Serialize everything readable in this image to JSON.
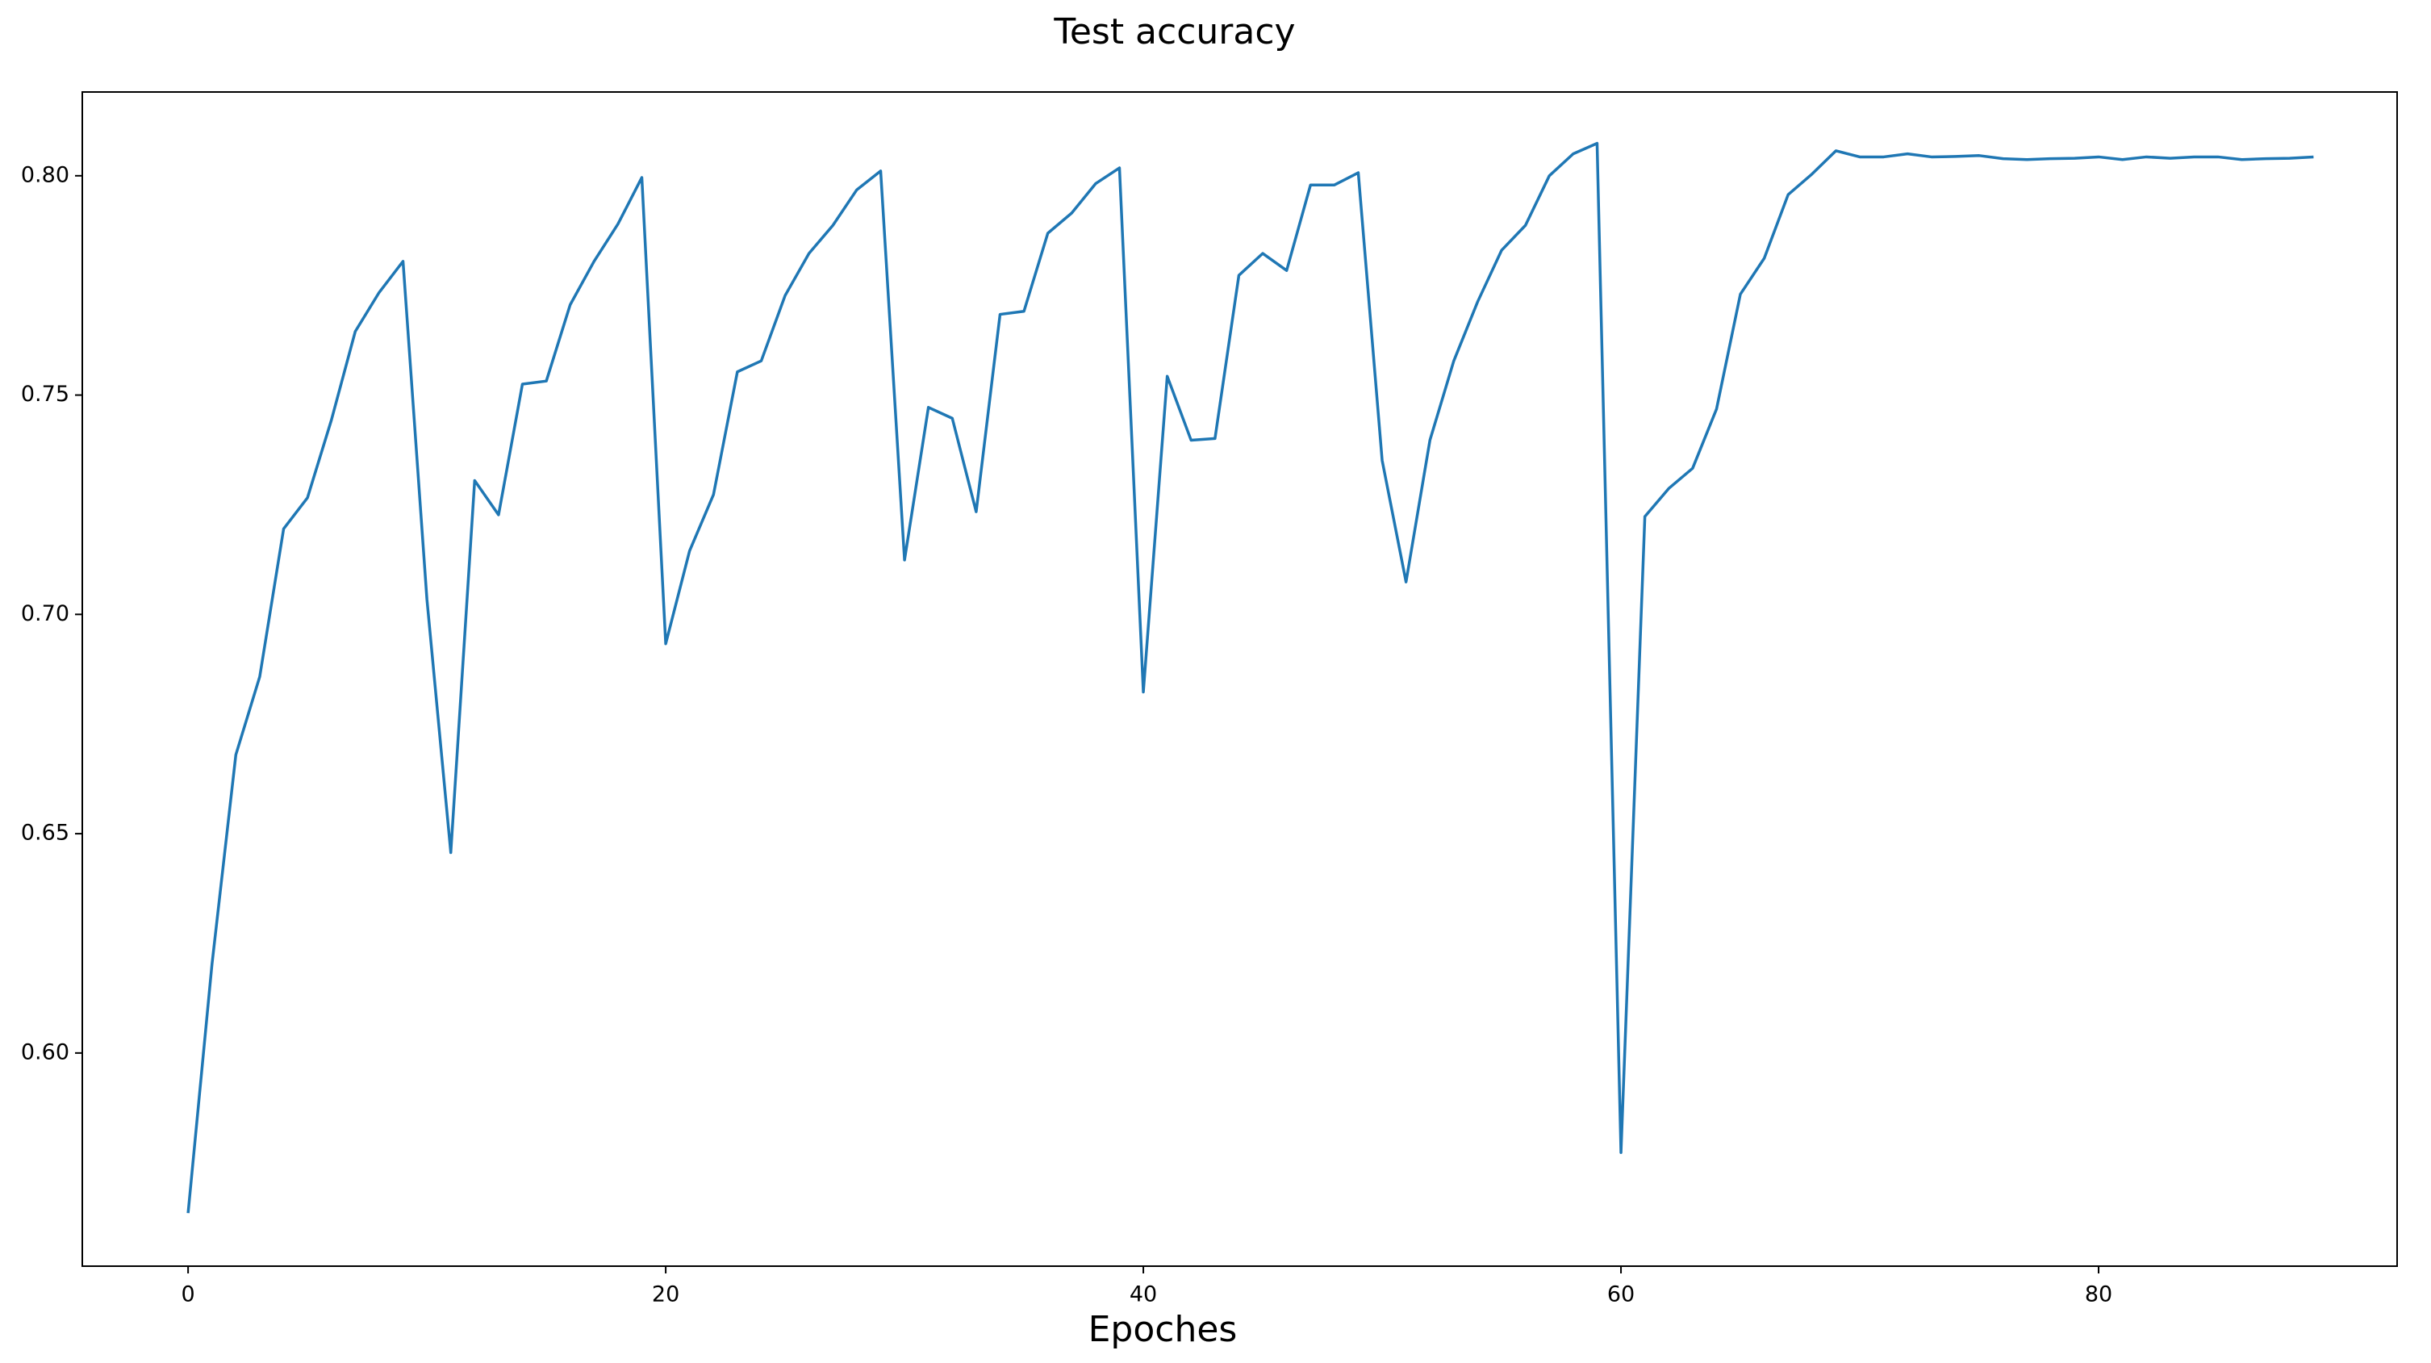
{
  "chart_data": {
    "type": "line",
    "title": "Test accuracy",
    "x_label": "Epoches",
    "x": [
      0,
      1,
      2,
      3,
      4,
      5,
      6,
      7,
      8,
      9,
      10,
      11,
      12,
      13,
      14,
      15,
      16,
      17,
      18,
      19,
      20,
      21,
      22,
      23,
      24,
      25,
      26,
      27,
      28,
      29,
      30,
      31,
      32,
      33,
      34,
      35,
      36,
      37,
      38,
      39,
      40,
      41,
      42,
      43,
      44,
      45,
      46,
      47,
      48,
      49,
      50,
      51,
      52,
      53,
      54,
      55,
      56,
      57,
      58,
      59,
      60,
      61,
      62,
      63,
      64,
      65,
      66,
      67,
      68,
      69,
      70,
      71,
      72,
      73,
      74,
      75,
      76,
      77,
      78,
      79,
      80,
      81,
      82,
      83,
      84,
      85,
      86,
      87,
      88,
      89
    ],
    "values": [
      0.5635,
      0.6202,
      0.668,
      0.6858,
      0.7195,
      0.7266,
      0.7443,
      0.7645,
      0.7734,
      0.7805,
      0.7035,
      0.6457,
      0.7305,
      0.7227,
      0.7525,
      0.7532,
      0.7706,
      0.7805,
      0.789,
      0.7996,
      0.6933,
      0.7145,
      0.7273,
      0.7553,
      0.7578,
      0.7727,
      0.7823,
      0.7887,
      0.7968,
      0.8011,
      0.7124,
      0.7472,
      0.7447,
      0.7234,
      0.7684,
      0.7691,
      0.7869,
      0.7915,
      0.7982,
      0.8018,
      0.6823,
      0.7543,
      0.7397,
      0.7401,
      0.7773,
      0.7823,
      0.7784,
      0.7979,
      0.7979,
      0.8007,
      0.7351,
      0.7074,
      0.7397,
      0.7578,
      0.7713,
      0.783,
      0.7887,
      0.8,
      0.805,
      0.8074,
      0.5773,
      0.7223,
      0.7287,
      0.7333,
      0.7468,
      0.773,
      0.7812,
      0.7957,
      0.8004,
      0.8057,
      0.8043,
      0.8043,
      0.805,
      0.8043,
      0.8044,
      0.8046,
      0.8039,
      0.8037,
      0.8039,
      0.804,
      0.8043,
      0.8037,
      0.8043,
      0.804,
      0.8043,
      0.8043,
      0.8037,
      0.8039,
      0.804,
      0.8043
    ],
    "color": "#1f77b4",
    "xlim": [
      -4.43,
      92.5
    ],
    "xticks": [
      0,
      20,
      40,
      60,
      80
    ],
    "ylim": [
      0.5514,
      0.8191
    ],
    "yticks": [
      {
        "value": 0.6,
        "label": "0.60"
      },
      0.65,
      {
        "value": 0.7,
        "label": "0.70"
      },
      0.75,
      {
        "value": 0.8,
        "label": "0.80"
      }
    ]
  }
}
